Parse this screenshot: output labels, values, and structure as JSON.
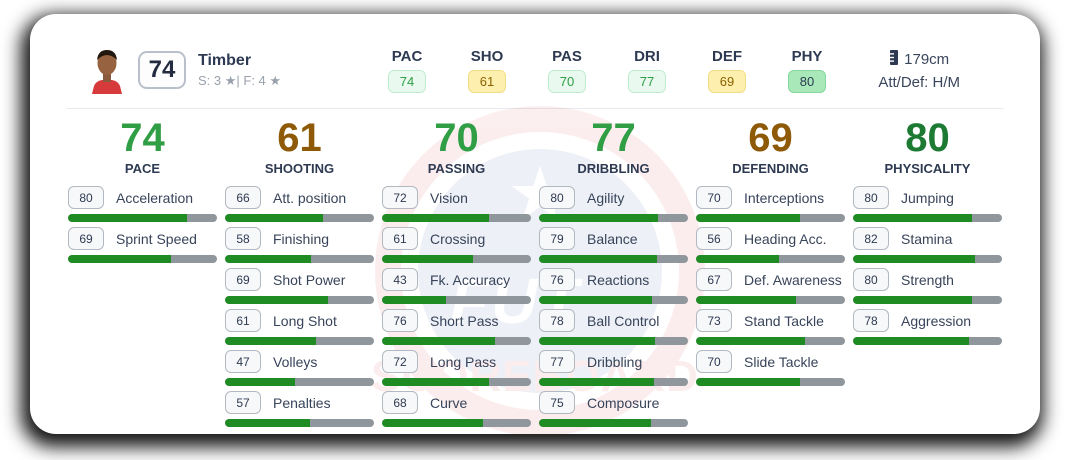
{
  "player": {
    "overall": "74",
    "name": "Timber",
    "skill_foot": "S: 3 ★| F: 4 ★",
    "height": "179cm",
    "att_def": "Att/Def: H/M"
  },
  "header_ratings": [
    {
      "label": "PAC",
      "value": "74",
      "tier": "good"
    },
    {
      "label": "SHO",
      "value": "61",
      "tier": "mid"
    },
    {
      "label": "PAS",
      "value": "70",
      "tier": "good"
    },
    {
      "label": "DRI",
      "value": "77",
      "tier": "good"
    },
    {
      "label": "DEF",
      "value": "69",
      "tier": "mid"
    },
    {
      "label": "PHY",
      "value": "80",
      "tier": "high"
    }
  ],
  "categories": [
    {
      "value": "74",
      "label": "PACE",
      "tier": "good",
      "stats": [
        {
          "value": 80,
          "label": "Acceleration"
        },
        {
          "value": 69,
          "label": "Sprint Speed"
        }
      ]
    },
    {
      "value": "61",
      "label": "SHOOTING",
      "tier": "mid",
      "stats": [
        {
          "value": 66,
          "label": "Att. position"
        },
        {
          "value": 58,
          "label": "Finishing"
        },
        {
          "value": 69,
          "label": "Shot Power"
        },
        {
          "value": 61,
          "label": "Long Shot"
        },
        {
          "value": 47,
          "label": "Volleys"
        },
        {
          "value": 57,
          "label": "Penalties"
        }
      ]
    },
    {
      "value": "70",
      "label": "PASSING",
      "tier": "good",
      "stats": [
        {
          "value": 72,
          "label": "Vision"
        },
        {
          "value": 61,
          "label": "Crossing"
        },
        {
          "value": 43,
          "label": "Fk. Accuracy"
        },
        {
          "value": 76,
          "label": "Short Pass"
        },
        {
          "value": 72,
          "label": "Long Pass"
        },
        {
          "value": 68,
          "label": "Curve"
        }
      ]
    },
    {
      "value": "77",
      "label": "DRIBBLING",
      "tier": "good",
      "stats": [
        {
          "value": 80,
          "label": "Agility"
        },
        {
          "value": 79,
          "label": "Balance"
        },
        {
          "value": 76,
          "label": "Reactions"
        },
        {
          "value": 78,
          "label": "Ball Control"
        },
        {
          "value": 77,
          "label": "Dribbling"
        },
        {
          "value": 75,
          "label": "Composure"
        }
      ]
    },
    {
      "value": "69",
      "label": "DEFENDING",
      "tier": "mid",
      "stats": [
        {
          "value": 70,
          "label": "Interceptions"
        },
        {
          "value": 56,
          "label": "Heading Acc."
        },
        {
          "value": 67,
          "label": "Def. Awareness"
        },
        {
          "value": 73,
          "label": "Stand Tackle"
        },
        {
          "value": 70,
          "label": "Slide Tackle"
        }
      ]
    },
    {
      "value": "80",
      "label": "PHYSICALITY",
      "tier": "high",
      "stats": [
        {
          "value": 80,
          "label": "Jumping"
        },
        {
          "value": 82,
          "label": "Stamina"
        },
        {
          "value": 80,
          "label": "Strength"
        },
        {
          "value": 78,
          "label": "Aggression"
        }
      ]
    }
  ],
  "watermark": {
    "star": "★",
    "line1": "FUT",
    "line2": "SCOREBOARD"
  },
  "colors": {
    "bar_fill": "#1e8c22",
    "bar_track": "#8f969c",
    "green": "#2f9e44",
    "dark_green": "#1d7a33",
    "brown": "#8e5a08",
    "badge_good_bg": "#e9f9ef",
    "badge_mid_bg": "#fdf0ae",
    "badge_high_bg": "#a9e9b9"
  }
}
